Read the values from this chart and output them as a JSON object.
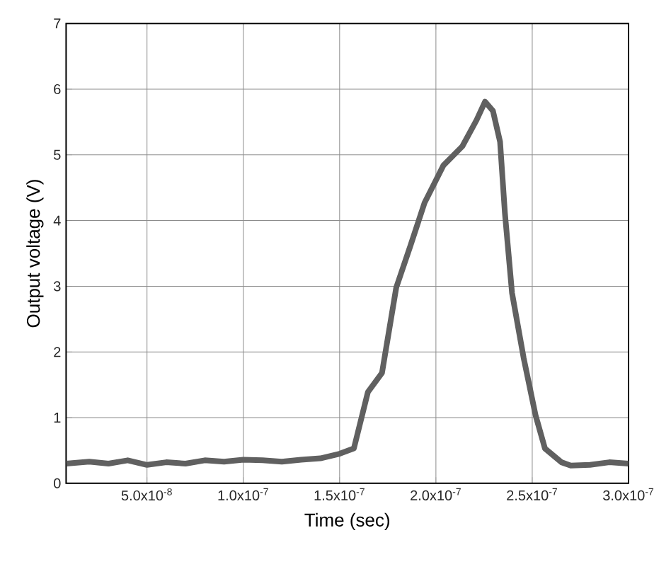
{
  "chart_data": {
    "type": "line",
    "xlabel": "Time (sec)",
    "ylabel": "Output voltage (V)",
    "xlim": [
      8e-09,
      3e-07
    ],
    "ylim": [
      0,
      7
    ],
    "xticks": [
      {
        "value": 5e-08,
        "label": "5.0x10$^{-8}$"
      },
      {
        "value": 1e-07,
        "label": "1.0x10$^{-7}$"
      },
      {
        "value": 1.5e-07,
        "label": "1.5x10$^{-7}$"
      },
      {
        "value": 2e-07,
        "label": "2.0x10$^{-7}$"
      },
      {
        "value": 2.5e-07,
        "label": "2.5x10$^{-7}$"
      },
      {
        "value": 3e-07,
        "label": "3.0x10$^{-7}$"
      }
    ],
    "yticks": [
      0,
      1,
      2,
      3,
      4,
      5,
      6,
      7
    ],
    "grid": true,
    "marker": "none",
    "line_style": "solid",
    "series": [
      {
        "color": "#606060",
        "x": [
          8e-09,
          2e-08,
          3e-08,
          4e-08,
          5e-08,
          6e-08,
          7e-08,
          8e-08,
          9e-08,
          1e-07,
          1.1e-07,
          1.2e-07,
          1.3e-07,
          1.4e-07,
          1.5e-07,
          1.574e-07,
          1.647e-07,
          1.72e-07,
          1.794e-07,
          1.868e-07,
          1.941e-07,
          2.039e-07,
          2.137e-07,
          2.211e-07,
          2.255e-07,
          2.296e-07,
          2.333e-07,
          2.358e-07,
          2.395e-07,
          2.456e-07,
          2.517e-07,
          2.566e-07,
          2.652e-07,
          2.7e-07,
          2.8e-07,
          2.9e-07,
          3e-07
        ],
        "values": [
          0.3,
          0.33,
          0.3,
          0.35,
          0.28,
          0.32,
          0.3,
          0.35,
          0.33,
          0.36,
          0.35,
          0.33,
          0.36,
          0.38,
          0.45,
          0.53,
          1.39,
          1.68,
          2.98,
          3.62,
          4.27,
          4.84,
          5.13,
          5.53,
          5.81,
          5.67,
          5.2,
          4.12,
          2.9,
          1.9,
          1.04,
          0.53,
          0.32,
          0.27,
          0.28,
          0.32,
          0.3
        ]
      }
    ]
  }
}
